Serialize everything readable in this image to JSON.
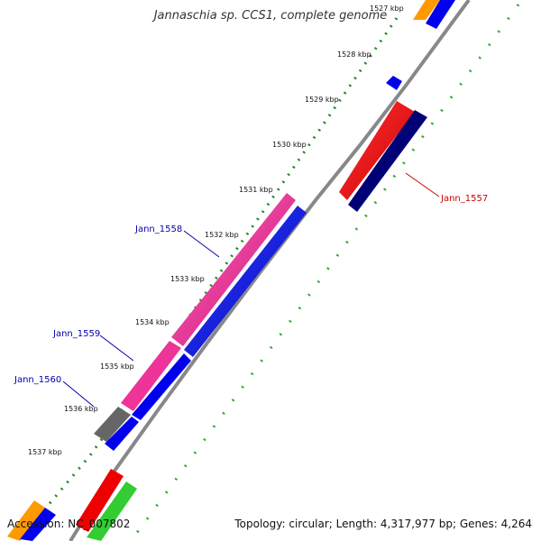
{
  "title": "Jannaschia sp. CCS1, complete genome",
  "ticks": [
    "1527 kbp",
    "1528 kbp",
    "1529 kbp",
    "1530 kbp",
    "1531 kbp",
    "1532 kbp",
    "1533 kbp",
    "1534 kbp",
    "1535 kbp",
    "1536 kbp",
    "1537 kbp"
  ],
  "gene_labels": [
    {
      "text": "Jann_1557",
      "color": "#cc0000"
    },
    {
      "text": "Jann_1558",
      "color": "#0000aa"
    },
    {
      "text": "Jann_1559",
      "color": "#0000aa"
    },
    {
      "text": "Jann_1560",
      "color": "#0000aa"
    }
  ],
  "colors": {
    "backbone": "#888888",
    "tick_dots": "#228822",
    "tick_dash": "#33aa33",
    "magenta": "#ee3399",
    "blue": "#0000ee",
    "red": "#ee0000",
    "navy": "#000077",
    "gray": "#666666",
    "orange": "#ff9900",
    "green": "#33cc33"
  },
  "footer": {
    "accession": "Accession: NC_007802",
    "topology": "Topology: circular; Length: 4,317,977 bp; Genes: 4,264"
  }
}
